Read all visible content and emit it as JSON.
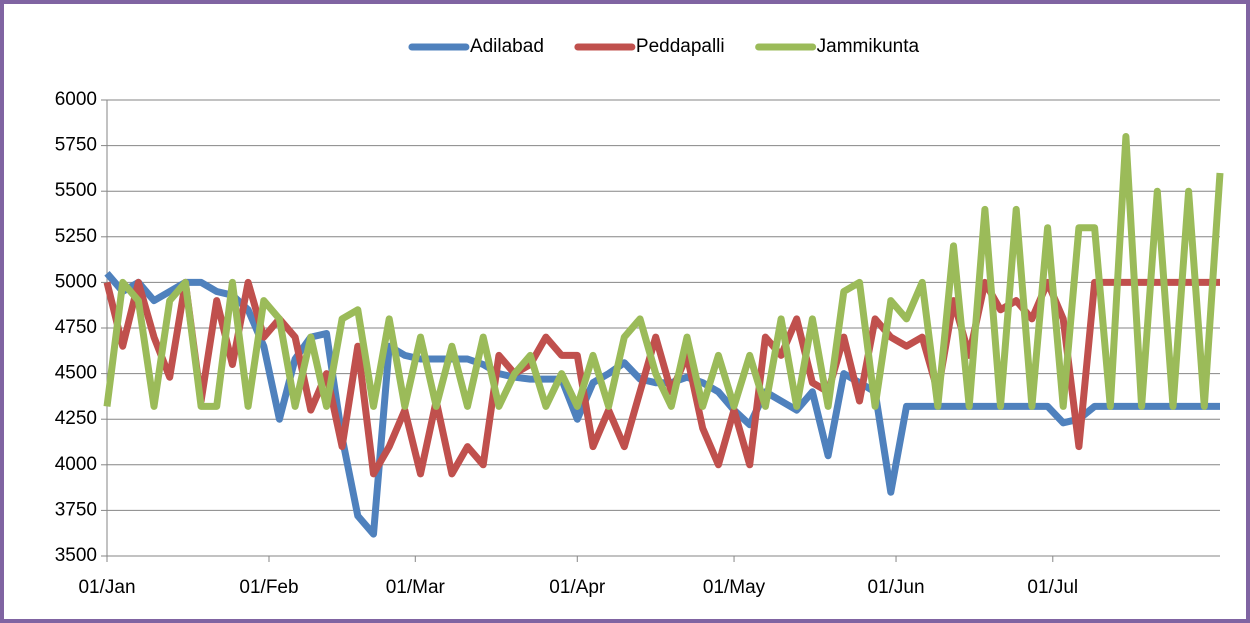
{
  "chart_data": {
    "type": "line",
    "x": [
      0,
      3,
      6,
      9,
      12,
      15,
      18,
      21,
      24,
      27,
      30,
      33,
      36,
      39,
      42,
      45,
      48,
      51,
      54,
      57,
      60,
      63,
      66,
      69,
      72,
      75,
      78,
      81,
      84,
      87,
      90,
      93,
      96,
      99,
      102,
      105,
      108,
      111,
      114,
      117,
      120,
      123,
      126,
      129,
      132,
      135,
      138,
      141,
      144,
      147,
      150,
      153,
      156,
      159,
      162,
      165,
      168,
      171,
      174,
      177,
      180,
      183,
      186,
      189,
      192,
      195,
      198,
      201,
      204,
      207,
      210,
      213
    ],
    "xlim": [
      0,
      213
    ],
    "xticks": [
      {
        "value": 0,
        "label": "01/Jan"
      },
      {
        "value": 31,
        "label": "01/Feb"
      },
      {
        "value": 59,
        "label": "01/Mar"
      },
      {
        "value": 90,
        "label": "01/Apr"
      },
      {
        "value": 120,
        "label": "01/May"
      },
      {
        "value": 151,
        "label": "01/Jun"
      },
      {
        "value": 181,
        "label": "01/Jul"
      }
    ],
    "ylim": [
      3500,
      6000
    ],
    "yticks": [
      3500,
      3750,
      4000,
      4250,
      4500,
      4750,
      5000,
      5250,
      5500,
      5750,
      6000
    ],
    "grid": true,
    "legend": "top",
    "series": [
      {
        "name": "Adilabad",
        "color": "#4f81bd",
        "values": [
          5050,
          4950,
          5000,
          4900,
          4950,
          5000,
          5000,
          4950,
          4930,
          4850,
          4650,
          4250,
          4580,
          4700,
          4720,
          4150,
          3720,
          3620,
          4650,
          4600,
          4580,
          4580,
          4580,
          4580,
          4550,
          4500,
          4480,
          4470,
          4470,
          4470,
          4250,
          4450,
          4500,
          4560,
          4470,
          4450,
          4450,
          4480,
          4450,
          4400,
          4300,
          4220,
          4400,
          4350,
          4300,
          4400,
          4050,
          4500,
          4450,
          4400,
          3850,
          4320,
          4320,
          4320,
          4320,
          4320,
          4320,
          4320,
          4320,
          4320,
          4320,
          4230,
          4250,
          4320,
          4320,
          4320,
          4320,
          4320,
          4320,
          4320,
          4320,
          4320
        ]
      },
      {
        "name": "Peddapalli",
        "color": "#c0504d",
        "values": [
          5000,
          4650,
          5000,
          4700,
          4480,
          5000,
          4350,
          4900,
          4550,
          5000,
          4700,
          4800,
          4700,
          4300,
          4500,
          4100,
          4650,
          3950,
          4100,
          4300,
          3950,
          4350,
          3950,
          4100,
          4000,
          4600,
          4500,
          4550,
          4700,
          4600,
          4600,
          4100,
          4300,
          4100,
          4400,
          4700,
          4400,
          4600,
          4200,
          4000,
          4300,
          4000,
          4700,
          4600,
          4800,
          4450,
          4400,
          4700,
          4350,
          4800,
          4700,
          4650,
          4700,
          4400,
          4900,
          4600,
          5000,
          4850,
          4900,
          4800,
          5000,
          4800,
          4100,
          5000,
          5000,
          5000,
          5000,
          5000,
          5000,
          5000,
          5000,
          5000
        ]
      },
      {
        "name": "Jammikunta",
        "color": "#9bbb59",
        "values": [
          4320,
          5000,
          4900,
          4320,
          4900,
          5000,
          4320,
          4320,
          5000,
          4320,
          4900,
          4800,
          4320,
          4700,
          4320,
          4800,
          4850,
          4320,
          4800,
          4320,
          4700,
          4320,
          4650,
          4320,
          4700,
          4320,
          4500,
          4600,
          4320,
          4500,
          4320,
          4600,
          4320,
          4700,
          4800,
          4500,
          4320,
          4700,
          4320,
          4600,
          4320,
          4600,
          4320,
          4800,
          4320,
          4800,
          4320,
          4950,
          5000,
          4320,
          4900,
          4800,
          5000,
          4320,
          5200,
          4320,
          5400,
          4320,
          5400,
          4320,
          5300,
          4320,
          5300,
          5300,
          4320,
          5800,
          4320,
          5500,
          4320,
          5500,
          4320,
          5600
        ]
      }
    ]
  }
}
